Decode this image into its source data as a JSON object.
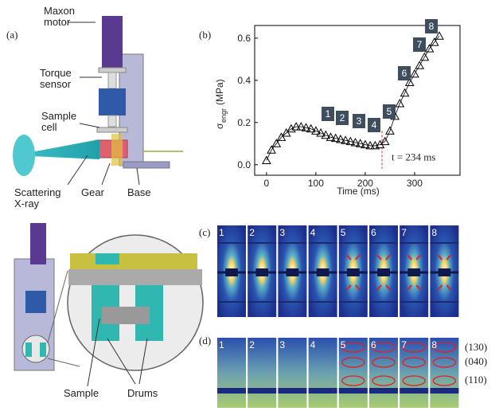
{
  "panels": {
    "a": "(a)",
    "b": "(b)",
    "c": "(c)",
    "d": "(d)"
  },
  "diagram": {
    "labels": {
      "motor": [
        "Maxon",
        "motor"
      ],
      "torque": [
        "Torque",
        "sensor"
      ],
      "cell": [
        "Sample",
        "cell"
      ],
      "xray": [
        "Scattering",
        "X-ray"
      ],
      "gear": "Gear",
      "base": "Base",
      "sample": "Sample",
      "drums": "Drums"
    }
  },
  "chart_data": {
    "type": "scatter",
    "xlabel": "Time (ms)",
    "ylabel": "σ",
    "ylabel_sub": "engr",
    "ylabel_unit": "(MPa)",
    "x": [
      0,
      10,
      20,
      30,
      40,
      50,
      60,
      70,
      80,
      90,
      100,
      110,
      120,
      130,
      140,
      150,
      160,
      170,
      180,
      190,
      200,
      210,
      220,
      230,
      240,
      250,
      260,
      270,
      280,
      290,
      300,
      310,
      320,
      330,
      340,
      350
    ],
    "values": [
      0.02,
      0.07,
      0.1,
      0.13,
      0.15,
      0.17,
      0.18,
      0.18,
      0.175,
      0.17,
      0.16,
      0.15,
      0.14,
      0.13,
      0.125,
      0.12,
      0.115,
      0.11,
      0.105,
      0.1,
      0.095,
      0.09,
      0.09,
      0.095,
      0.11,
      0.16,
      0.23,
      0.29,
      0.34,
      0.39,
      0.43,
      0.47,
      0.51,
      0.55,
      0.58,
      0.61
    ],
    "color": "#000000",
    "xlim": [
      -24,
      392
    ],
    "ylim": [
      -0.05,
      0.66
    ],
    "xticks": [
      0,
      100,
      200,
      300
    ],
    "yticks": [
      {
        "value": 0,
        "label": "0.0"
      },
      0.2,
      0.4,
      0.6
    ],
    "annotation": {
      "x": 234,
      "label": "t = 234 ms",
      "color": "#d0312d"
    },
    "stage_labels": [
      "1",
      "2",
      "3",
      "4",
      "5",
      "6",
      "7",
      "8"
    ]
  },
  "saxs": {
    "frames": [
      "1",
      "2",
      "3",
      "4",
      "5",
      "6",
      "7",
      "8"
    ]
  },
  "waxs": {
    "frames": [
      "1",
      "2",
      "3",
      "4",
      "5",
      "6",
      "7",
      "8"
    ],
    "reflections": [
      "(130)",
      "(040)",
      "(110)"
    ]
  }
}
